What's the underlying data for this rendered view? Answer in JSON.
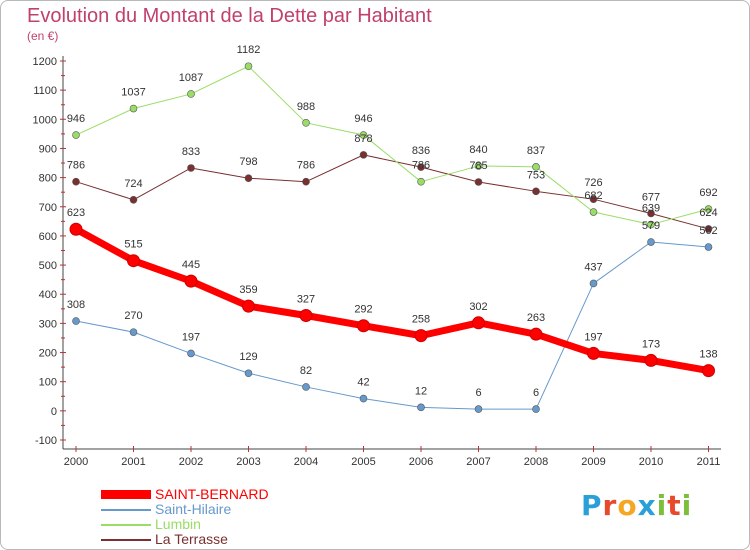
{
  "header": {
    "title": "Evolution du Montant de la Dette par Habitant",
    "subtitle": "(en €)"
  },
  "chart_data": {
    "type": "line",
    "title": "Evolution du Montant de la Dette par Habitant",
    "subtitle": "(en €)",
    "xlabel": "",
    "ylabel": "",
    "x": [
      "2000",
      "2001",
      "2002",
      "2003",
      "2004",
      "2005",
      "2006",
      "2007",
      "2008",
      "2009",
      "2010",
      "2011"
    ],
    "ylim": [
      -100,
      1200
    ],
    "yticks": [
      -100,
      0,
      100,
      200,
      300,
      400,
      500,
      600,
      700,
      800,
      900,
      1000,
      1100,
      1200
    ],
    "grid": false,
    "legend_position": "bottom-left",
    "series": [
      {
        "name": "SAINT-BERNARD",
        "color": "#ff0000",
        "values": [
          623,
          515,
          445,
          359,
          327,
          292,
          258,
          302,
          263,
          197,
          173,
          138
        ]
      },
      {
        "name": "Saint-Hilaire",
        "color": "#6699cc",
        "values": [
          308,
          270,
          197,
          129,
          82,
          42,
          12,
          6,
          6,
          437,
          579,
          562
        ]
      },
      {
        "name": "Lumbin",
        "color": "#99dd66",
        "values": [
          946,
          1037,
          1087,
          1182,
          988,
          946,
          786,
          840,
          837,
          682,
          639,
          692
        ]
      },
      {
        "name": "La Terrasse",
        "color": "#7a3030",
        "values": [
          786,
          724,
          833,
          798,
          786,
          878,
          836,
          785,
          753,
          726,
          677,
          624
        ]
      }
    ]
  },
  "branding": {
    "logo_letters": [
      "P",
      "r",
      "o",
      "x",
      "i",
      "t",
      "i"
    ],
    "logo_colors": [
      "#2a9fd8",
      "#e8492c",
      "#f5a623",
      "#2a9fd8",
      "#7bbf3a",
      "#e8492c",
      "#7bbf3a"
    ]
  }
}
